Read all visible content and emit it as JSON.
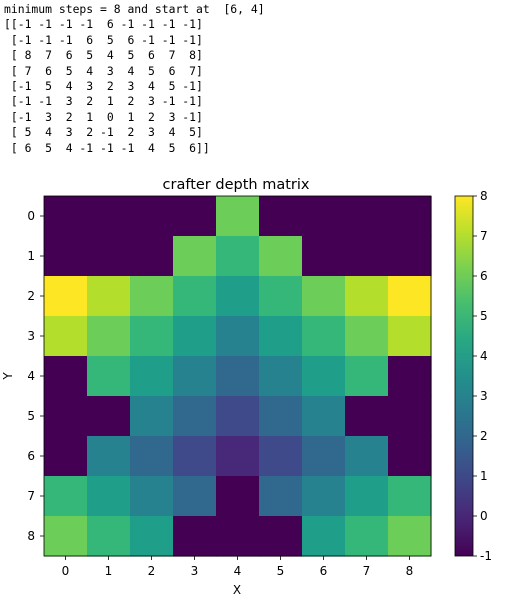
{
  "console": {
    "header": "minimum steps = 8 and start at  [6, 4]",
    "matrix_lines": [
      "[[-1 -1 -1 -1  6 -1 -1 -1 -1]",
      " [-1 -1 -1  6  5  6 -1 -1 -1]",
      " [ 8  7  6  5  4  5  6  7  8]",
      " [ 7  6  5  4  3  4  5  6  7]",
      " [-1  5  4  3  2  3  4  5 -1]",
      " [-1 -1  3  2  1  2  3 -1 -1]",
      " [-1  3  2  1  0  1  2  3 -1]",
      " [ 5  4  3  2 -1  2  3  4  5]",
      " [ 6  5  4 -1 -1 -1  4  5  6]]"
    ]
  },
  "chart_data": {
    "type": "heatmap",
    "title": "crafter depth matrix",
    "xlabel": "X",
    "ylabel": "Y",
    "x_ticks": [
      "0",
      "1",
      "2",
      "3",
      "4",
      "5",
      "6",
      "7",
      "8"
    ],
    "y_ticks": [
      "0",
      "1",
      "2",
      "3",
      "4",
      "5",
      "6",
      "7",
      "8"
    ],
    "colormap": "viridis",
    "vmin": -1,
    "vmax": 8,
    "colorbar_ticks": [
      "8",
      "7",
      "6",
      "5",
      "4",
      "3",
      "2",
      "1",
      "0",
      "-1"
    ],
    "values": [
      [
        -1,
        -1,
        -1,
        -1,
        6,
        -1,
        -1,
        -1,
        -1
      ],
      [
        -1,
        -1,
        -1,
        6,
        5,
        6,
        -1,
        -1,
        -1
      ],
      [
        8,
        7,
        6,
        5,
        4,
        5,
        6,
        7,
        8
      ],
      [
        7,
        6,
        5,
        4,
        3,
        4,
        5,
        6,
        7
      ],
      [
        -1,
        5,
        4,
        3,
        2,
        3,
        4,
        5,
        -1
      ],
      [
        -1,
        -1,
        3,
        2,
        1,
        2,
        3,
        -1,
        -1
      ],
      [
        -1,
        3,
        2,
        1,
        0,
        1,
        2,
        3,
        -1
      ],
      [
        5,
        4,
        3,
        2,
        -1,
        2,
        3,
        4,
        5
      ],
      [
        6,
        5,
        4,
        -1,
        -1,
        -1,
        4,
        5,
        6
      ]
    ]
  }
}
